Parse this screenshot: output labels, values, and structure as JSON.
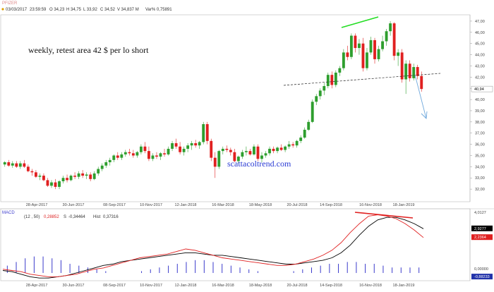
{
  "header": {
    "symbol": "PFIZER",
    "date_time": "03/03/2017",
    "time": "23:59:59",
    "open": "O 34,23",
    "high": "H 34,75",
    "low": "L 33,92",
    "close": "C 34,52",
    "volume": "V 34,837 M",
    "change": "Var% 0,75891"
  },
  "annotations": {
    "note": "weekly, retest area 42 $ per lo short",
    "watermark": "scattacoltrend.com"
  },
  "colors": {
    "up": "#2e9e2e",
    "down": "#e02020",
    "macd_line": "#000000",
    "signal_line": "#e02020",
    "hist": "#3a3acc",
    "trend": "#22dd22",
    "divergence": "#e02020",
    "arrow": "#6fa8dc"
  },
  "chart_data": [
    {
      "type": "candlestick",
      "title": "",
      "ylim": [
        31,
        47.5
      ],
      "y_ticks": [
        "32,00",
        "33,00",
        "34,00",
        "35,00",
        "36,00",
        "37,00",
        "38,00",
        "39,00",
        "40,00",
        "41,00",
        "42,00",
        "43,00",
        "44,00",
        "45,00",
        "46,00",
        "47,00"
      ],
      "x_ticks": [
        "28-Apr-2017",
        "30-Jun-2017",
        "08-Sep-2017",
        "10-Nov-2017",
        "12-Jan-2018",
        "16-Mar-2018",
        "18-May-2018",
        "20-Jul-2018",
        "14-Sep-2018",
        "16-Nov-2018",
        "18-Jan-2019"
      ],
      "last_price_label": "40,94",
      "candles": [
        [
          34.2,
          34.5,
          34.0,
          34.4
        ],
        [
          34.4,
          34.6,
          34.0,
          34.1
        ],
        [
          34.1,
          34.5,
          33.9,
          34.3
        ],
        [
          34.3,
          34.5,
          33.9,
          34.0
        ],
        [
          34.0,
          34.5,
          33.8,
          34.3
        ],
        [
          34.3,
          34.6,
          33.9,
          34.0
        ],
        [
          34.0,
          34.2,
          33.5,
          33.6
        ],
        [
          33.6,
          33.8,
          33.2,
          33.5
        ],
        [
          33.5,
          33.7,
          33.0,
          33.1
        ],
        [
          33.1,
          33.4,
          32.8,
          33.2
        ],
        [
          33.2,
          33.4,
          32.7,
          32.8
        ],
        [
          32.8,
          33.0,
          32.2,
          32.3
        ],
        [
          32.3,
          32.8,
          32.1,
          32.6
        ],
        [
          32.6,
          32.9,
          32.0,
          32.2
        ],
        [
          32.2,
          32.8,
          32.0,
          32.7
        ],
        [
          32.7,
          33.2,
          32.5,
          33.0
        ],
        [
          33.0,
          33.3,
          32.6,
          32.8
        ],
        [
          32.8,
          33.3,
          32.7,
          33.2
        ],
        [
          33.2,
          33.5,
          32.9,
          33.1
        ],
        [
          33.1,
          33.6,
          32.9,
          33.4
        ],
        [
          33.4,
          33.7,
          33.0,
          33.2
        ],
        [
          33.2,
          33.5,
          32.9,
          33.3
        ],
        [
          33.3,
          33.5,
          32.7,
          32.9
        ],
        [
          32.9,
          33.6,
          32.8,
          33.4
        ],
        [
          33.4,
          34.0,
          33.2,
          33.8
        ],
        [
          33.8,
          34.3,
          33.6,
          34.1
        ],
        [
          34.1,
          34.6,
          33.9,
          34.4
        ],
        [
          34.4,
          34.8,
          34.1,
          34.6
        ],
        [
          34.6,
          35.1,
          34.4,
          35.0
        ],
        [
          35.0,
          35.3,
          34.6,
          34.8
        ],
        [
          34.8,
          35.3,
          34.6,
          35.1
        ],
        [
          35.1,
          35.5,
          34.9,
          35.3
        ],
        [
          35.3,
          35.6,
          35.0,
          35.2
        ],
        [
          35.2,
          35.5,
          34.8,
          35.0
        ],
        [
          35.0,
          35.4,
          34.8,
          35.3
        ],
        [
          35.3,
          36.0,
          35.1,
          35.8
        ],
        [
          35.8,
          36.2,
          35.2,
          35.4
        ],
        [
          35.4,
          35.8,
          34.5,
          34.7
        ],
        [
          34.7,
          35.2,
          34.5,
          35.0
        ],
        [
          35.0,
          35.3,
          34.7,
          34.9
        ],
        [
          34.9,
          35.3,
          34.6,
          35.2
        ],
        [
          35.2,
          35.6,
          34.9,
          35.1
        ],
        [
          35.1,
          35.8,
          35.0,
          35.6
        ],
        [
          35.6,
          36.3,
          35.4,
          36.1
        ],
        [
          36.1,
          36.5,
          35.6,
          35.8
        ],
        [
          35.8,
          36.2,
          35.1,
          35.3
        ],
        [
          35.3,
          35.8,
          35.0,
          35.6
        ],
        [
          35.6,
          36.1,
          35.3,
          35.9
        ],
        [
          35.9,
          36.3,
          35.5,
          36.1
        ],
        [
          36.1,
          36.4,
          35.7,
          35.9
        ],
        [
          35.9,
          36.3,
          35.6,
          36.2
        ],
        [
          36.2,
          38.0,
          36.0,
          37.8
        ],
        [
          37.8,
          38.0,
          36.0,
          36.3
        ],
        [
          36.3,
          36.5,
          34.5,
          34.8
        ],
        [
          34.8,
          35.3,
          33.0,
          34.0
        ],
        [
          34.0,
          35.5,
          33.8,
          35.4
        ],
        [
          35.4,
          35.8,
          35.1,
          35.6
        ],
        [
          35.6,
          35.9,
          35.3,
          35.5
        ],
        [
          35.5,
          35.7,
          35.0,
          35.3
        ],
        [
          35.3,
          35.6,
          34.4,
          34.5
        ],
        [
          34.5,
          35.0,
          34.3,
          34.9
        ],
        [
          34.9,
          35.5,
          34.7,
          35.3
        ],
        [
          35.3,
          35.8,
          35.0,
          35.4
        ],
        [
          35.4,
          35.6,
          35.0,
          35.1
        ],
        [
          35.1,
          36.0,
          35.0,
          35.8
        ],
        [
          35.8,
          36.0,
          34.5,
          34.7
        ],
        [
          34.7,
          35.3,
          34.4,
          35.0
        ],
        [
          35.0,
          35.4,
          34.8,
          35.2
        ],
        [
          35.2,
          35.8,
          35.0,
          35.6
        ],
        [
          35.6,
          35.8,
          35.2,
          35.4
        ],
        [
          35.4,
          35.8,
          35.2,
          35.7
        ],
        [
          35.7,
          36.0,
          35.4,
          35.5
        ],
        [
          35.5,
          35.9,
          35.3,
          35.8
        ],
        [
          35.8,
          36.3,
          35.6,
          36.0
        ],
        [
          36.0,
          36.2,
          35.7,
          35.9
        ],
        [
          35.9,
          36.4,
          35.7,
          36.3
        ],
        [
          36.3,
          36.8,
          36.1,
          36.6
        ],
        [
          36.6,
          37.5,
          36.5,
          37.3
        ],
        [
          37.3,
          38.2,
          37.2,
          38.0
        ],
        [
          38.0,
          40.0,
          37.9,
          39.8
        ],
        [
          39.8,
          40.5,
          39.5,
          40.3
        ],
        [
          40.3,
          41.0,
          40.0,
          40.8
        ],
        [
          40.8,
          41.5,
          40.4,
          41.2
        ],
        [
          41.2,
          42.4,
          41.0,
          42.2
        ],
        [
          42.2,
          42.5,
          41.0,
          41.3
        ],
        [
          41.3,
          42.6,
          41.1,
          42.4
        ],
        [
          42.4,
          43.0,
          42.1,
          42.8
        ],
        [
          42.8,
          44.5,
          42.6,
          44.2
        ],
        [
          44.2,
          44.8,
          43.5,
          43.8
        ],
        [
          43.8,
          45.9,
          43.6,
          45.7
        ],
        [
          45.7,
          45.9,
          44.2,
          44.6
        ],
        [
          44.6,
          45.4,
          44.0,
          45.0
        ],
        [
          45.0,
          45.5,
          42.5,
          42.8
        ],
        [
          42.8,
          44.6,
          42.6,
          44.2
        ],
        [
          44.2,
          45.6,
          44.0,
          45.3
        ],
        [
          45.3,
          45.5,
          43.2,
          43.6
        ],
        [
          43.6,
          44.8,
          43.4,
          44.5
        ],
        [
          44.5,
          45.7,
          44.3,
          45.2
        ],
        [
          45.2,
          46.3,
          44.8,
          46.1
        ],
        [
          46.1,
          47.0,
          45.7,
          46.8
        ],
        [
          46.8,
          46.9,
          43.5,
          43.9
        ],
        [
          43.9,
          44.5,
          43.0,
          44.2
        ],
        [
          44.2,
          44.5,
          41.5,
          41.8
        ],
        [
          41.8,
          43.5,
          40.5,
          43.2
        ],
        [
          43.2,
          43.5,
          41.6,
          41.9
        ],
        [
          41.9,
          43.2,
          41.7,
          42.9
        ],
        [
          42.9,
          43.1,
          41.8,
          42.1
        ],
        [
          42.1,
          42.5,
          40.7,
          40.94
        ]
      ]
    },
    {
      "type": "line",
      "title": "MACD",
      "params": "(12 , 50)",
      "macd_value": "0,28852",
      "signal_value": "-0,34464",
      "hist_value": "0,37316",
      "labels": {
        "signal": "S",
        "hist": "Hist"
      },
      "y_ticks": [
        "4,0127",
        "2,9277",
        "2,2364",
        "-0,88233"
      ],
      "y_tick_values": [
        4.0127,
        2.9277,
        2.2364,
        -0.88233
      ],
      "ylim": [
        -1.1,
        4.2
      ],
      "zero_label": "0,00000",
      "series": [
        {
          "name": "MACD",
          "values": [
            -0.4,
            -0.5,
            -0.7,
            -0.9,
            -1.0,
            -1.0,
            -0.9,
            -0.8,
            -0.6,
            -0.4,
            -0.2,
            0.0,
            0.1,
            0.3,
            0.4,
            0.5,
            0.6,
            0.7,
            0.8,
            0.9,
            1.0,
            1.0,
            0.9,
            0.8,
            0.8,
            0.7,
            0.6,
            0.5,
            0.4,
            0.3,
            0.2,
            0.1,
            0.1,
            0.2,
            0.3,
            0.4,
            0.6,
            1.0,
            1.6,
            2.4,
            3.1,
            3.6,
            3.8,
            3.8,
            3.6,
            3.3,
            2.9
          ]
        },
        {
          "name": "Signal",
          "values": [
            -0.3,
            -0.4,
            -0.5,
            -0.7,
            -0.8,
            -0.9,
            -0.9,
            -0.8,
            -0.7,
            -0.5,
            -0.3,
            -0.2,
            0.0,
            0.2,
            0.4,
            0.6,
            0.7,
            0.8,
            0.9,
            1.1,
            1.3,
            1.2,
            1.0,
            0.8,
            0.6,
            0.5,
            0.4,
            0.3,
            0.2,
            0.1,
            0.0,
            0.0,
            0.1,
            0.3,
            0.5,
            0.8,
            1.2,
            1.8,
            2.6,
            3.3,
            3.9,
            4.0,
            3.9,
            3.7,
            3.3,
            2.8,
            2.2
          ]
        }
      ],
      "histogram": [
        0.4,
        0.6,
        0.8,
        0.9,
        0.9,
        0.8,
        0.7,
        0.5,
        0.4,
        0.3,
        0.2,
        0.1,
        0.0,
        0.0,
        0.0,
        0.1,
        0.2,
        0.3,
        0.4,
        0.5,
        0.6,
        0.7,
        0.7,
        0.6,
        0.5,
        0.4,
        0.3,
        0.2,
        0.1,
        0.0,
        0.0,
        0.0,
        0.1,
        0.2,
        0.3,
        0.4,
        0.5,
        0.5,
        0.6,
        0.6,
        0.5,
        0.5,
        0.4,
        0.3,
        0.3,
        0.3,
        0.3
      ],
      "x_ticks": [
        "28-Apr-2017",
        "30-Jun-2017",
        "08-Sep-2017",
        "10-Nov-2017",
        "12-Jan-2018",
        "16-Mar-2018",
        "18-May-2018",
        "20-Jul-2018",
        "14-Sep-2018",
        "16-Nov-2018",
        "18-Jan-2019"
      ]
    }
  ]
}
